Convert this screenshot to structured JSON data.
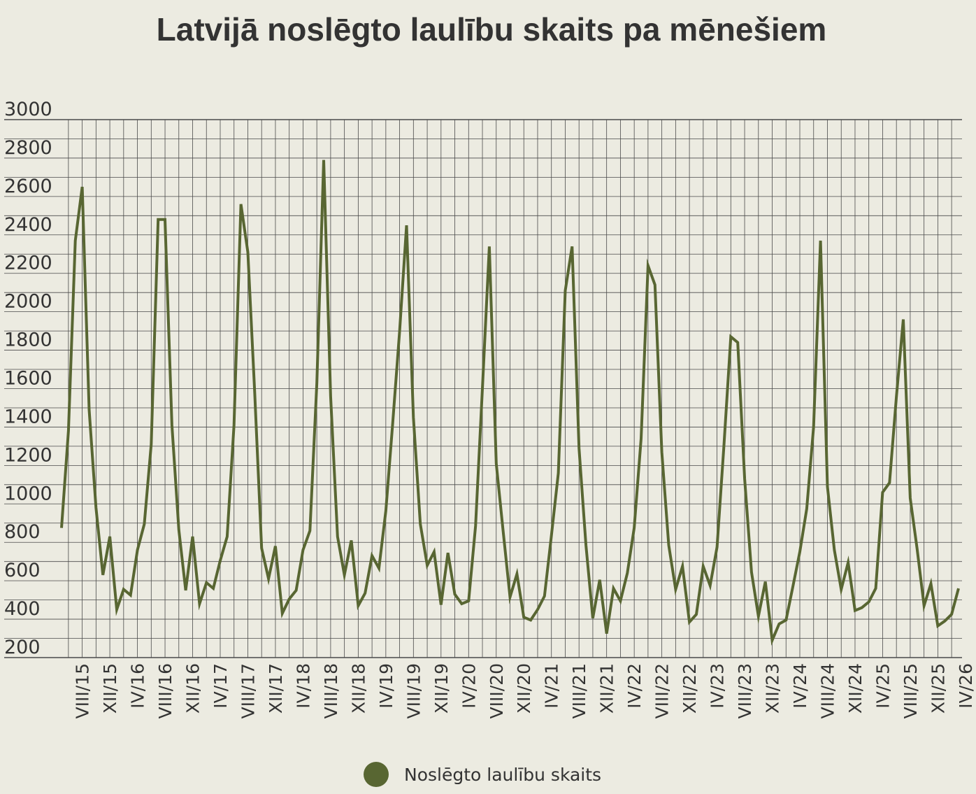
{
  "chart_data": {
    "type": "line",
    "title": "Latvijā noslēgto laulību skaits pa mēnešiem",
    "xlabel": "",
    "ylabel": "",
    "ylim": [
      200,
      3000
    ],
    "yticks": [
      3000,
      2800,
      2600,
      2400,
      2200,
      2000,
      1800,
      1600,
      1400,
      1200,
      1000,
      800,
      600,
      400,
      200
    ],
    "grid": true,
    "legend_position": "bottom",
    "tick_labels": [
      "VIII/15",
      "XII/15",
      "IV/16",
      "VIII/16",
      "XII/16",
      "IV/17",
      "VIII/17",
      "XII/17",
      "IV/18",
      "VIII/18",
      "XII/18",
      "IV/19",
      "VIII/19",
      "XII/19",
      "IV/20",
      "VIII/20",
      "XII/20",
      "IV/21",
      "VIII/21",
      "XII/21",
      "IV/22",
      "VIII/22",
      "XII/22",
      "IV/23",
      "VIII/23",
      "XII/23",
      "IV/24",
      "VIII/24",
      "XII/24",
      "IV/25",
      "VIII/25",
      "XII/25",
      "IV/26"
    ],
    "series": [
      {
        "name": "Noslēgto laulību skaits",
        "color": "#586632",
        "start_month": "V/15",
        "values": [
          875,
          1380,
          2370,
          2650,
          1490,
          980,
          630,
          830,
          450,
          555,
          525,
          760,
          895,
          1310,
          2480,
          2480,
          1410,
          865,
          550,
          830,
          480,
          590,
          560,
          705,
          830,
          1410,
          2560,
          2310,
          1580,
          770,
          610,
          780,
          430,
          505,
          550,
          760,
          860,
          1630,
          2790,
          1560,
          830,
          630,
          810,
          470,
          535,
          730,
          665,
          965,
          1420,
          1900,
          2450,
          1450,
          895,
          680,
          750,
          475,
          745,
          530,
          480,
          495,
          885,
          1600,
          2340,
          1210,
          860,
          515,
          635,
          410,
          395,
          450,
          520,
          835,
          1160,
          2110,
          2340,
          1290,
          785,
          405,
          605,
          325,
          560,
          495,
          640,
          875,
          1340,
          2240,
          2140,
          1270,
          785,
          555,
          675,
          385,
          425,
          675,
          575,
          775,
          1300,
          1870,
          1840,
          1130,
          645,
          415,
          595,
          290,
          375,
          395,
          570,
          750,
          975,
          1400,
          2370,
          1090,
          760,
          555,
          695,
          445,
          460,
          490,
          560,
          1060,
          1110,
          1560,
          1960,
          1030,
          765,
          470,
          585,
          365,
          390,
          425,
          560
        ]
      }
    ]
  }
}
